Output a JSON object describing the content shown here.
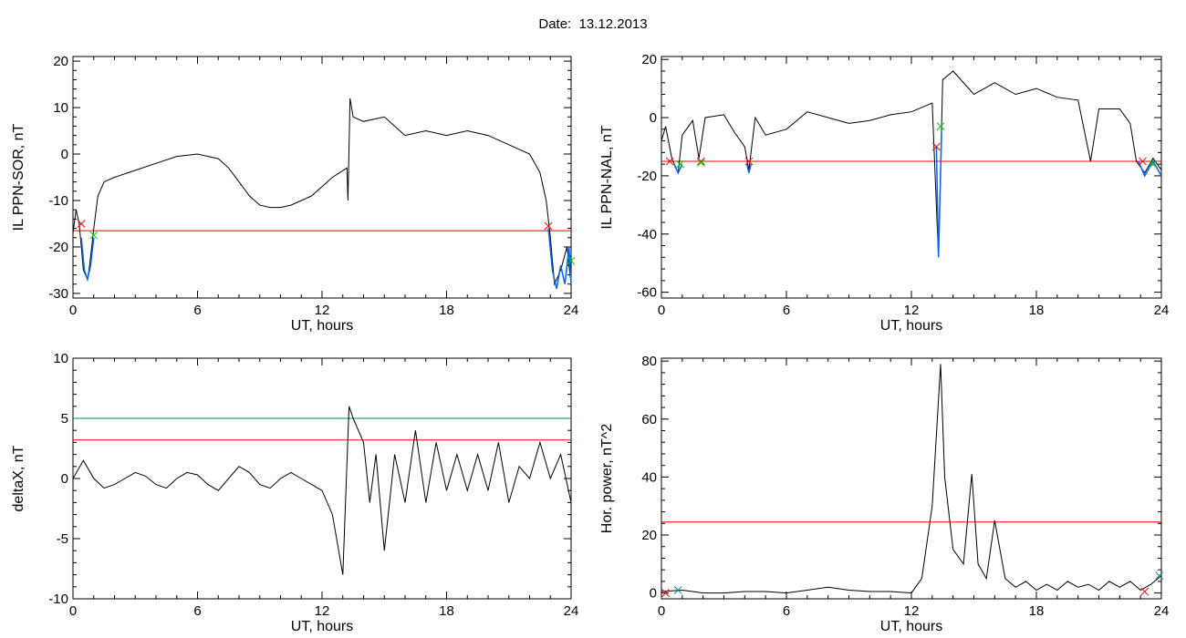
{
  "page": {
    "title": "Date:  13.12.2013"
  },
  "chart_data": [
    {
      "type": "line",
      "ylabel": "IL PPN-SOR, nT",
      "xlabel": "UT, hours",
      "xlim": [
        0,
        24
      ],
      "ylim": [
        -31,
        21
      ],
      "xticks": [
        0,
        6,
        12,
        18,
        24
      ],
      "yticks": [
        -30,
        -20,
        -10,
        0,
        10,
        20
      ],
      "series": [
        {
          "color": "#000000",
          "points": [
            [
              0,
              -17
            ],
            [
              0.15,
              -12
            ],
            [
              0.3,
              -15
            ],
            [
              0.5,
              -25
            ],
            [
              0.7,
              -27
            ],
            [
              0.8,
              -24
            ],
            [
              1.0,
              -16
            ],
            [
              1.2,
              -9
            ],
            [
              1.5,
              -6
            ],
            [
              2,
              -5
            ],
            [
              3,
              -3.5
            ],
            [
              4,
              -2
            ],
            [
              5,
              -0.5
            ],
            [
              6,
              0
            ],
            [
              7,
              -1
            ],
            [
              7.5,
              -3
            ],
            [
              8,
              -6
            ],
            [
              8.5,
              -9
            ],
            [
              9,
              -11
            ],
            [
              9.5,
              -11.5
            ],
            [
              10,
              -11.5
            ],
            [
              10.5,
              -11
            ],
            [
              11,
              -10
            ],
            [
              11.5,
              -9
            ],
            [
              12,
              -7
            ],
            [
              12.5,
              -5
            ],
            [
              13.2,
              -3
            ],
            [
              13.25,
              -10
            ],
            [
              13.35,
              12
            ],
            [
              13.5,
              8
            ],
            [
              14,
              7
            ],
            [
              15,
              8
            ],
            [
              16,
              4
            ],
            [
              17,
              5
            ],
            [
              18,
              4
            ],
            [
              19,
              5
            ],
            [
              20,
              4
            ],
            [
              21,
              2
            ],
            [
              22,
              0
            ],
            [
              22.5,
              -4
            ],
            [
              22.8,
              -10
            ],
            [
              23.0,
              -18
            ],
            [
              23.2,
              -28
            ],
            [
              23.5,
              -25
            ],
            [
              23.8,
              -20
            ],
            [
              24,
              -28
            ]
          ]
        }
      ],
      "threshold": {
        "value": -16.5,
        "color": "#ff0000"
      },
      "highlights": [
        {
          "color": "#0066ff",
          "points": [
            [
              0.4,
              -18
            ],
            [
              0.55,
              -25
            ],
            [
              0.7,
              -27
            ],
            [
              0.85,
              -24
            ],
            [
              1.0,
              -18
            ]
          ]
        },
        {
          "color": "#0066ff",
          "points": [
            [
              22.9,
              -16
            ],
            [
              23.1,
              -25
            ],
            [
              23.3,
              -29
            ],
            [
              23.5,
              -24
            ],
            [
              23.7,
              -28
            ],
            [
              23.9,
              -20
            ],
            [
              24,
              -28
            ]
          ]
        }
      ],
      "markers": [
        {
          "x": 0.4,
          "y": -15,
          "color": "#ff0000"
        },
        {
          "x": 1.0,
          "y": -17.5,
          "color": "#00cc00"
        },
        {
          "x": 22.9,
          "y": -15.5,
          "color": "#ff0000"
        },
        {
          "x": 24,
          "y": -23,
          "color": "#00cc00"
        }
      ]
    },
    {
      "type": "line",
      "ylabel": "IL PPN-NAL, nT",
      "xlabel": "UT, hours",
      "xlim": [
        0,
        24
      ],
      "ylim": [
        -62,
        21
      ],
      "xticks": [
        0,
        6,
        12,
        18,
        24
      ],
      "yticks": [
        -60,
        -40,
        -20,
        0,
        20
      ],
      "series": [
        {
          "color": "#000000",
          "points": [
            [
              0,
              -8
            ],
            [
              0.2,
              -3
            ],
            [
              0.5,
              -14
            ],
            [
              0.8,
              -19
            ],
            [
              1.0,
              -6
            ],
            [
              1.5,
              -1
            ],
            [
              1.8,
              -14
            ],
            [
              2.1,
              0
            ],
            [
              3,
              1
            ],
            [
              3.5,
              -5
            ],
            [
              4,
              -10
            ],
            [
              4.2,
              -18
            ],
            [
              4.5,
              0
            ],
            [
              5,
              -6
            ],
            [
              6,
              -4
            ],
            [
              7,
              2
            ],
            [
              8,
              0
            ],
            [
              9,
              -2
            ],
            [
              10,
              -1
            ],
            [
              11,
              1
            ],
            [
              12,
              2
            ],
            [
              13,
              5
            ],
            [
              13.3,
              -48
            ],
            [
              13.5,
              13
            ],
            [
              14,
              16
            ],
            [
              15,
              8
            ],
            [
              16,
              12
            ],
            [
              17,
              8
            ],
            [
              18,
              10
            ],
            [
              19,
              7
            ],
            [
              20,
              6
            ],
            [
              20.6,
              -15
            ],
            [
              21,
              3
            ],
            [
              22,
              3
            ],
            [
              22.5,
              -2
            ],
            [
              22.8,
              -15
            ],
            [
              23.2,
              -19
            ],
            [
              23.6,
              -14
            ],
            [
              24,
              -18
            ]
          ]
        }
      ],
      "threshold": {
        "value": -15,
        "color": "#ff0000"
      },
      "highlights": [
        {
          "color": "#0066ff",
          "points": [
            [
              0.6,
              -16
            ],
            [
              0.8,
              -19
            ],
            [
              1.0,
              -16
            ]
          ]
        },
        {
          "color": "#0066ff",
          "points": [
            [
              4.1,
              -16
            ],
            [
              4.2,
              -19
            ],
            [
              4.3,
              -16
            ]
          ]
        },
        {
          "color": "#0066ff",
          "points": [
            [
              13.2,
              -10
            ],
            [
              13.3,
              -48
            ],
            [
              13.45,
              -5
            ]
          ]
        },
        {
          "color": "#0066ff",
          "points": [
            [
              22.9,
              -15
            ],
            [
              23.2,
              -20
            ],
            [
              23.6,
              -15
            ],
            [
              24,
              -20
            ]
          ]
        }
      ],
      "markers": [
        {
          "x": 0.4,
          "y": -15,
          "color": "#ff0000"
        },
        {
          "x": 0.9,
          "y": -16,
          "color": "#00cc00"
        },
        {
          "x": 1.9,
          "y": -15,
          "color": "#ff0000"
        },
        {
          "x": 1.9,
          "y": -15.5,
          "color": "#00cc00"
        },
        {
          "x": 4.2,
          "y": -15,
          "color": "#ff0000"
        },
        {
          "x": 13.2,
          "y": -10,
          "color": "#ff0000"
        },
        {
          "x": 13.4,
          "y": -3,
          "color": "#00cc00"
        },
        {
          "x": 23.1,
          "y": -15,
          "color": "#ff0000"
        },
        {
          "x": 23.6,
          "y": -16,
          "color": "#00cc00"
        }
      ]
    },
    {
      "type": "line",
      "ylabel": "deltaX, nT",
      "xlabel": "UT, hours",
      "xlim": [
        0,
        24
      ],
      "ylim": [
        -10,
        10
      ],
      "xticks": [
        0,
        6,
        12,
        18,
        24
      ],
      "yticks": [
        -10,
        -5,
        0,
        5,
        10
      ],
      "series": [
        {
          "color": "#000000",
          "points": [
            [
              0,
              0
            ],
            [
              0.5,
              1.5
            ],
            [
              1,
              0
            ],
            [
              1.5,
              -0.8
            ],
            [
              2,
              -0.5
            ],
            [
              2.5,
              0
            ],
            [
              3,
              0.5
            ],
            [
              3.5,
              0.2
            ],
            [
              4,
              -0.5
            ],
            [
              4.5,
              -0.8
            ],
            [
              5,
              0
            ],
            [
              5.5,
              0.5
            ],
            [
              6,
              0.3
            ],
            [
              6.5,
              -0.5
            ],
            [
              7,
              -1
            ],
            [
              7.5,
              0
            ],
            [
              8,
              1
            ],
            [
              8.5,
              0.5
            ],
            [
              9,
              -0.5
            ],
            [
              9.5,
              -0.8
            ],
            [
              10,
              0
            ],
            [
              10.5,
              0.5
            ],
            [
              11,
              0
            ],
            [
              11.5,
              -0.5
            ],
            [
              12,
              -1
            ],
            [
              12.5,
              -3
            ],
            [
              13,
              -8
            ],
            [
              13.3,
              6
            ],
            [
              13.5,
              5
            ],
            [
              14,
              3
            ],
            [
              14.3,
              -2
            ],
            [
              14.6,
              2
            ],
            [
              15,
              -6
            ],
            [
              15.5,
              2
            ],
            [
              16,
              -2
            ],
            [
              16.5,
              4
            ],
            [
              17,
              -2
            ],
            [
              17.5,
              3
            ],
            [
              18,
              -1
            ],
            [
              18.5,
              2
            ],
            [
              19,
              -1
            ],
            [
              19.5,
              2
            ],
            [
              20,
              -1
            ],
            [
              20.5,
              3
            ],
            [
              21,
              -2
            ],
            [
              21.5,
              1
            ],
            [
              22,
              0
            ],
            [
              22.5,
              3
            ],
            [
              23,
              0
            ],
            [
              23.5,
              2
            ],
            [
              24,
              -2
            ]
          ]
        }
      ],
      "thresholds": [
        {
          "value": 5,
          "color": "#008080"
        },
        {
          "value": 3.2,
          "color": "#ff0000"
        }
      ]
    },
    {
      "type": "line",
      "ylabel": "Hor. power, nT^2",
      "xlabel": "UT, hours",
      "xlim": [
        0,
        24
      ],
      "ylim": [
        -2,
        81
      ],
      "xticks": [
        0,
        6,
        12,
        18,
        24
      ],
      "yticks": [
        0,
        20,
        40,
        60,
        80
      ],
      "series": [
        {
          "color": "#000000",
          "points": [
            [
              0,
              0.5
            ],
            [
              1,
              1
            ],
            [
              2,
              0
            ],
            [
              3,
              0
            ],
            [
              4,
              0.5
            ],
            [
              5,
              0.5
            ],
            [
              6,
              0
            ],
            [
              7,
              1
            ],
            [
              8,
              2
            ],
            [
              9,
              1
            ],
            [
              10,
              0.5
            ],
            [
              11,
              0.5
            ],
            [
              12,
              0
            ],
            [
              12.5,
              5
            ],
            [
              13,
              30
            ],
            [
              13.4,
              79
            ],
            [
              13.6,
              40
            ],
            [
              14,
              15
            ],
            [
              14.5,
              10
            ],
            [
              14.9,
              41
            ],
            [
              15.2,
              10
            ],
            [
              15.6,
              5
            ],
            [
              16,
              25
            ],
            [
              16.5,
              5
            ],
            [
              17,
              2
            ],
            [
              17.5,
              4
            ],
            [
              18,
              1
            ],
            [
              18.5,
              3
            ],
            [
              19,
              1
            ],
            [
              19.5,
              4
            ],
            [
              20,
              2
            ],
            [
              20.5,
              3
            ],
            [
              21,
              1
            ],
            [
              21.5,
              4
            ],
            [
              22,
              2
            ],
            [
              22.5,
              4
            ],
            [
              23,
              1
            ],
            [
              23.5,
              3
            ],
            [
              24,
              6
            ]
          ]
        }
      ],
      "threshold": {
        "value": 24.5,
        "color": "#ff0000"
      },
      "markers": [
        {
          "x": 0.2,
          "y": 0,
          "color": "#ff0000"
        },
        {
          "x": 0.8,
          "y": 1,
          "color": "#008080"
        },
        {
          "x": 23.2,
          "y": 0.5,
          "color": "#ff0000"
        },
        {
          "x": 23.9,
          "y": 6,
          "color": "#008080"
        }
      ]
    }
  ]
}
